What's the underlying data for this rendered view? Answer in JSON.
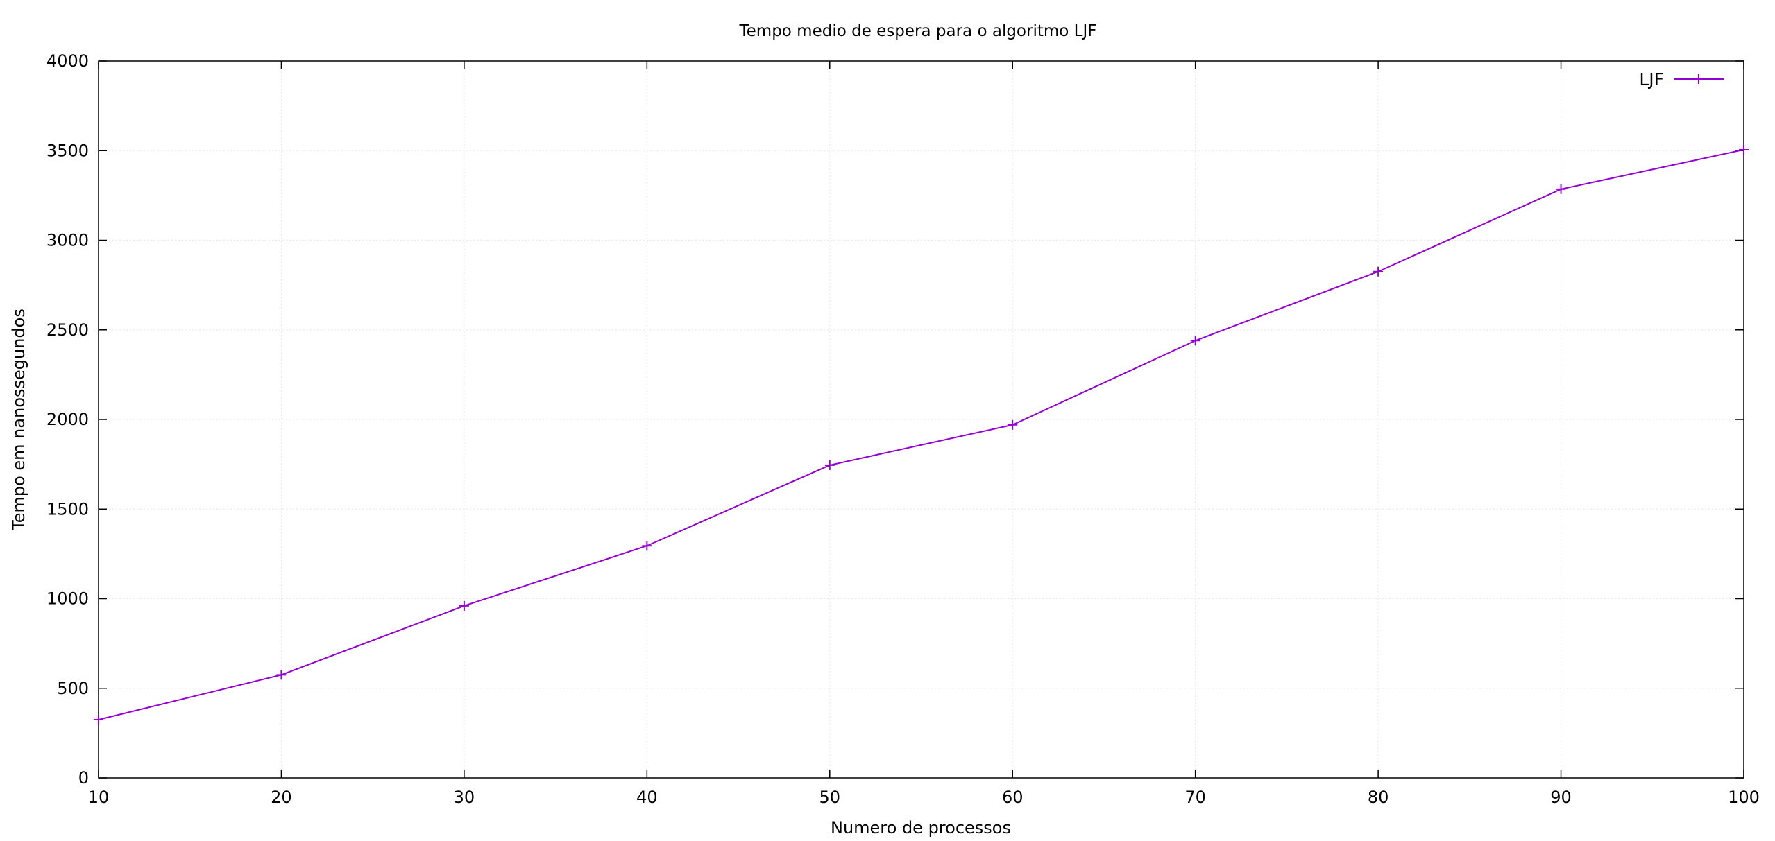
{
  "chart_data": {
    "type": "line",
    "title": "Tempo medio de espera para o algoritmo LJF",
    "xlabel": "Numero de processos",
    "ylabel": "Tempo em nanossegundos",
    "xlim": [
      10,
      100
    ],
    "ylim": [
      0,
      4000
    ],
    "x_ticks": [
      "10",
      "20",
      "30",
      "40",
      "50",
      "60",
      "70",
      "80",
      "90",
      "100"
    ],
    "y_ticks": [
      "0",
      "500",
      "1000",
      "1500",
      "2000",
      "2500",
      "3000",
      "3500",
      "4000"
    ],
    "grid": true,
    "legend_position": "top-right",
    "x": [
      10,
      20,
      30,
      40,
      50,
      60,
      70,
      80,
      90,
      100
    ],
    "series": [
      {
        "name": "LJF",
        "color": "#9400d3",
        "marker": "plus",
        "values": [
          325,
          575,
          960,
          1295,
          1745,
          1970,
          2440,
          2825,
          3285,
          3505
        ]
      }
    ]
  }
}
